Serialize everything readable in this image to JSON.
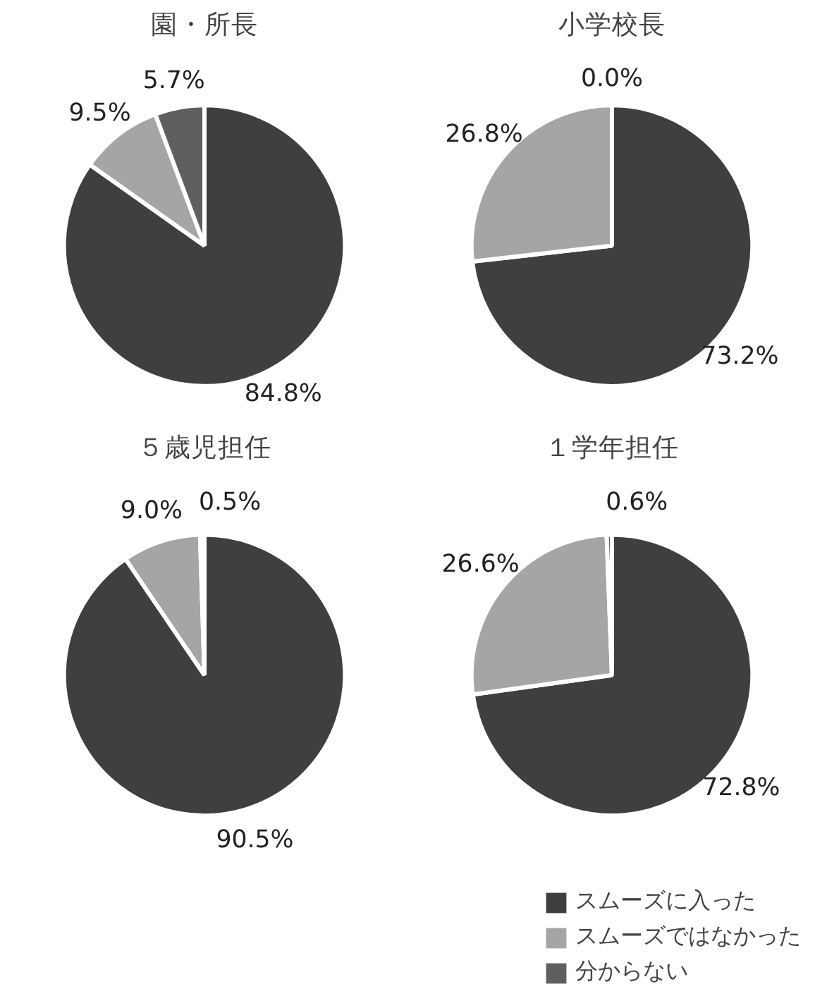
{
  "chart_data": [
    {
      "type": "pie",
      "title": "園・所長",
      "categories": [
        null,
        null,
        null
      ],
      "values": [
        84.8,
        9.5,
        5.7
      ],
      "colors": [
        "#3f3f3f",
        "#a5a5a5",
        "#5f5f5f"
      ],
      "value_labels": [
        "84.8%",
        "9.5%",
        "5.7%"
      ]
    },
    {
      "type": "pie",
      "title": "小学校長",
      "categories": [
        null,
        null,
        null
      ],
      "values": [
        73.2,
        26.8,
        0.0
      ],
      "colors": [
        "#3f3f3f",
        "#a5a5a5",
        "#5f5f5f"
      ],
      "value_labels": [
        "73.2%",
        "26.8%",
        "0.0%"
      ]
    },
    {
      "type": "pie",
      "title": "５歳児担任",
      "categories": [
        null,
        null,
        null
      ],
      "values": [
        90.5,
        9.0,
        0.5
      ],
      "colors": [
        "#3f3f3f",
        "#a5a5a5",
        "#5f5f5f"
      ],
      "value_labels": [
        "90.5%",
        "9.0%",
        "0.5%"
      ]
    },
    {
      "type": "pie",
      "title": "１学年担任",
      "categories": [
        "スムーズに入った",
        "スムーズではなかった",
        "分からない"
      ],
      "values": [
        72.8,
        26.6,
        0.6
      ],
      "colors": [
        "#3f3f3f",
        "#a5a5a5",
        "#5f5f5f"
      ],
      "value_labels": [
        "72.8%",
        "26.6%",
        "0.6%"
      ],
      "legend": "bottom right"
    }
  ]
}
